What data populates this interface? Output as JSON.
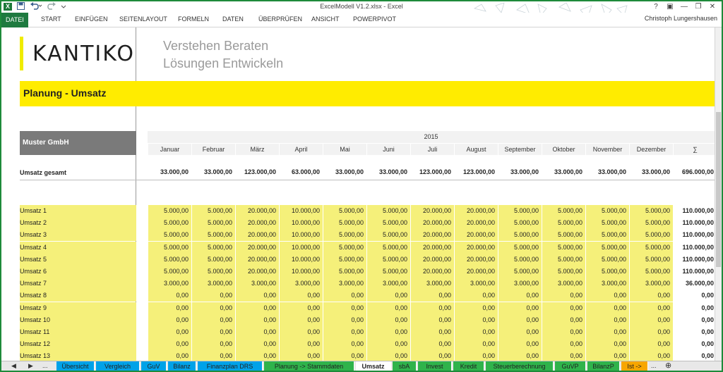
{
  "window": {
    "title": "ExcelModell V1.2.xlsx - Excel",
    "app_icon": "X",
    "controls": [
      "?",
      "▣",
      "—",
      "❐",
      "✕"
    ]
  },
  "quick_access": {
    "save_icon": "save-icon",
    "undo_icon": "undo-icon",
    "redo_icon": "redo-icon"
  },
  "ribbon": {
    "tabs": [
      "DATEI",
      "START",
      "EINFÜGEN",
      "SEITENLAYOUT",
      "FORMELN",
      "DATEN",
      "ÜBERPRÜFEN",
      "ANSICHT",
      "POWERPIVOT"
    ],
    "user": "Christoph Lungershausen"
  },
  "brand": {
    "logo": "KANTIKO",
    "slogan_1": "Verstehen Beraten",
    "slogan_2": "Lösungen Entwickeln",
    "accent_color": "#ffec00"
  },
  "sheet": {
    "title": "Planung - Umsatz",
    "company": "Muster GmbH",
    "year": "2015",
    "months": [
      "Januar",
      "Februar",
      "März",
      "April",
      "Mai",
      "Juni",
      "Juli",
      "August",
      "September",
      "Oktober",
      "November",
      "Dezember",
      "∑"
    ],
    "total_row": {
      "label": "Umsatz gesamt",
      "values": [
        "33.000,00",
        "33.000,00",
        "123.000,00",
        "63.000,00",
        "33.000,00",
        "33.000,00",
        "123.000,00",
        "123.000,00",
        "33.000,00",
        "33.000,00",
        "33.000,00",
        "33.000,00",
        "696.000,00"
      ]
    },
    "rows": [
      {
        "label": "Umsatz 1",
        "values": [
          "5.000,00",
          "5.000,00",
          "20.000,00",
          "10.000,00",
          "5.000,00",
          "5.000,00",
          "20.000,00",
          "20.000,00",
          "5.000,00",
          "5.000,00",
          "5.000,00",
          "5.000,00",
          "110.000,00"
        ]
      },
      {
        "label": "Umsatz 2",
        "values": [
          "5.000,00",
          "5.000,00",
          "20.000,00",
          "10.000,00",
          "5.000,00",
          "5.000,00",
          "20.000,00",
          "20.000,00",
          "5.000,00",
          "5.000,00",
          "5.000,00",
          "5.000,00",
          "110.000,00"
        ]
      },
      {
        "label": "Umsatz 3",
        "values": [
          "5.000,00",
          "5.000,00",
          "20.000,00",
          "10.000,00",
          "5.000,00",
          "5.000,00",
          "20.000,00",
          "20.000,00",
          "5.000,00",
          "5.000,00",
          "5.000,00",
          "5.000,00",
          "110.000,00"
        ]
      },
      {
        "label": "Umsatz 4",
        "values": [
          "5.000,00",
          "5.000,00",
          "20.000,00",
          "10.000,00",
          "5.000,00",
          "5.000,00",
          "20.000,00",
          "20.000,00",
          "5.000,00",
          "5.000,00",
          "5.000,00",
          "5.000,00",
          "110.000,00"
        ]
      },
      {
        "label": "Umsatz 5",
        "values": [
          "5.000,00",
          "5.000,00",
          "20.000,00",
          "10.000,00",
          "5.000,00",
          "5.000,00",
          "20.000,00",
          "20.000,00",
          "5.000,00",
          "5.000,00",
          "5.000,00",
          "5.000,00",
          "110.000,00"
        ]
      },
      {
        "label": "Umsatz 6",
        "values": [
          "5.000,00",
          "5.000,00",
          "20.000,00",
          "10.000,00",
          "5.000,00",
          "5.000,00",
          "20.000,00",
          "20.000,00",
          "5.000,00",
          "5.000,00",
          "5.000,00",
          "5.000,00",
          "110.000,00"
        ]
      },
      {
        "label": "Umsatz 7",
        "values": [
          "3.000,00",
          "3.000,00",
          "3.000,00",
          "3.000,00",
          "3.000,00",
          "3.000,00",
          "3.000,00",
          "3.000,00",
          "3.000,00",
          "3.000,00",
          "3.000,00",
          "3.000,00",
          "36.000,00"
        ]
      },
      {
        "label": "Umsatz 8",
        "values": [
          "0,00",
          "0,00",
          "0,00",
          "0,00",
          "0,00",
          "0,00",
          "0,00",
          "0,00",
          "0,00",
          "0,00",
          "0,00",
          "0,00",
          "0,00"
        ]
      },
      {
        "label": "Umsatz 9",
        "values": [
          "0,00",
          "0,00",
          "0,00",
          "0,00",
          "0,00",
          "0,00",
          "0,00",
          "0,00",
          "0,00",
          "0,00",
          "0,00",
          "0,00",
          "0,00"
        ]
      },
      {
        "label": "Umsatz 10",
        "values": [
          "0,00",
          "0,00",
          "0,00",
          "0,00",
          "0,00",
          "0,00",
          "0,00",
          "0,00",
          "0,00",
          "0,00",
          "0,00",
          "0,00",
          "0,00"
        ]
      },
      {
        "label": "Umsatz 11",
        "values": [
          "0,00",
          "0,00",
          "0,00",
          "0,00",
          "0,00",
          "0,00",
          "0,00",
          "0,00",
          "0,00",
          "0,00",
          "0,00",
          "0,00",
          "0,00"
        ]
      },
      {
        "label": "Umsatz 12",
        "values": [
          "0,00",
          "0,00",
          "0,00",
          "0,00",
          "0,00",
          "0,00",
          "0,00",
          "0,00",
          "0,00",
          "0,00",
          "0,00",
          "0,00",
          "0,00"
        ]
      },
      {
        "label": "Umsatz 13",
        "values": [
          "0,00",
          "0,00",
          "0,00",
          "0,00",
          "0,00",
          "0,00",
          "0,00",
          "0,00",
          "0,00",
          "0,00",
          "0,00",
          "0,00",
          "0,00"
        ]
      }
    ]
  },
  "sheet_tabs": {
    "nav": [
      "◀",
      "▶",
      "..."
    ],
    "tabs": [
      {
        "label": "Übersicht",
        "color": "#00a2e8"
      },
      {
        "label": "Vergleich",
        "color": "#00a2e8"
      },
      {
        "label": "GuV",
        "color": "#00a2e8"
      },
      {
        "label": "Bilanz",
        "color": "#00a2e8"
      },
      {
        "label": "Finanzplan DRS",
        "color": "#00a2e8"
      },
      {
        "label": "Planung -> Stammdaten",
        "color": "#2fb34b"
      },
      {
        "label": "Umsatz",
        "color": "#ffffff"
      },
      {
        "label": "sbA",
        "color": "#2fb34b"
      },
      {
        "label": "Invest",
        "color": "#2fb34b"
      },
      {
        "label": "Kredit",
        "color": "#2fb34b"
      },
      {
        "label": "Steuerberechnung",
        "color": "#2fb34b"
      },
      {
        "label": "GuVP",
        "color": "#2fb34b"
      },
      {
        "label": "BilanzP",
        "color": "#2fb34b"
      },
      {
        "label": "Ist ->",
        "color": "#f7a600"
      }
    ],
    "more": "...",
    "add": "⊕"
  }
}
